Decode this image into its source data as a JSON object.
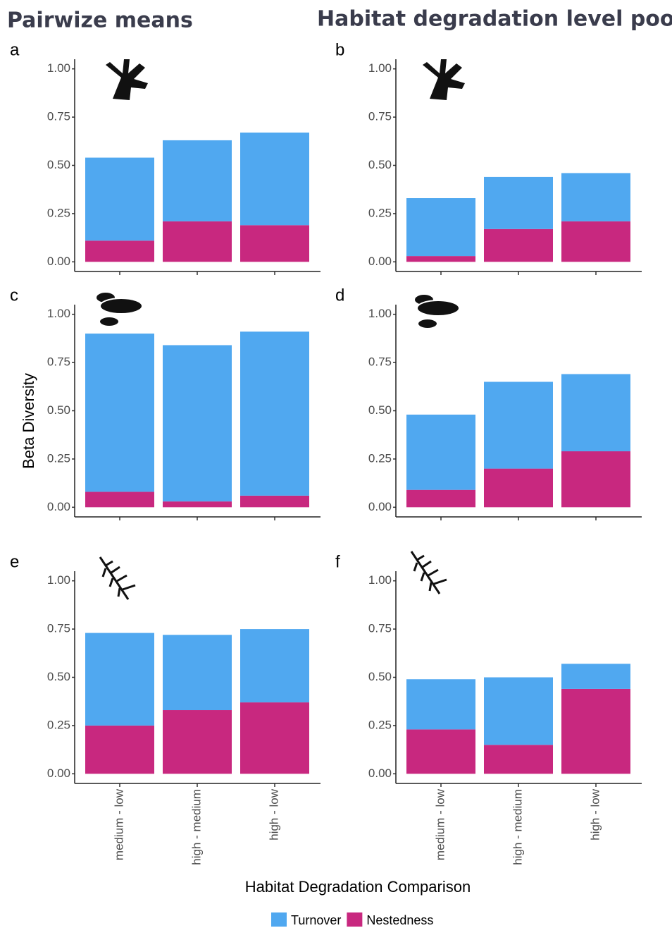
{
  "column_titles": [
    "Pairwize means",
    "Habitat degradation level pooled"
  ],
  "ylabel": "Beta Diversity",
  "xlabel": "Habitat Degradation Comparison",
  "legend": [
    {
      "name": "Turnover",
      "color": "#50a8f0"
    },
    {
      "name": "Nestedness",
      "color": "#c8287f"
    }
  ],
  "chart_data": [
    {
      "type": "bar",
      "stacked": true,
      "panel_label": "a",
      "categories": [
        null,
        null,
        null
      ],
      "series": [
        {
          "values": [
            0.43,
            0.42,
            0.48
          ]
        },
        {
          "values": [
            0.11,
            0.21,
            0.19
          ]
        }
      ],
      "ylim": [
        -0.05,
        1.05
      ],
      "yticks": [
        {
          "value": 0,
          "label": "0.00"
        },
        {
          "value": 0.25,
          "label": "0.25"
        },
        {
          "value": 0.5,
          "label": "0.50"
        },
        {
          "value": 0.75,
          "label": "0.75"
        },
        {
          "value": 1,
          "label": "1.00"
        }
      ]
    },
    {
      "type": "bar",
      "stacked": true,
      "panel_label": "b",
      "categories": [
        null,
        null,
        null
      ],
      "series": [
        {
          "values": [
            0.3,
            0.27,
            0.25
          ]
        },
        {
          "values": [
            0.03,
            0.17,
            0.21
          ]
        }
      ],
      "ylim": [
        -0.05,
        1.05
      ],
      "yticks": [
        {
          "value": 0,
          "label": "0.00"
        },
        {
          "value": 0.25,
          "label": "0.25"
        },
        {
          "value": 0.5,
          "label": "0.50"
        },
        {
          "value": 0.75,
          "label": "0.75"
        },
        {
          "value": 1,
          "label": "1.00"
        }
      ]
    },
    {
      "type": "bar",
      "stacked": true,
      "panel_label": "c",
      "categories": [
        null,
        null,
        null
      ],
      "series": [
        {
          "values": [
            0.82,
            0.81,
            0.85
          ]
        },
        {
          "values": [
            0.08,
            0.03,
            0.06
          ]
        }
      ],
      "ylim": [
        -0.05,
        1.05
      ],
      "yticks": [
        {
          "value": 0,
          "label": "0.00"
        },
        {
          "value": 0.25,
          "label": "0.25"
        },
        {
          "value": 0.5,
          "label": "0.50"
        },
        {
          "value": 0.75,
          "label": "0.75"
        },
        {
          "value": 1,
          "label": "1.00"
        }
      ]
    },
    {
      "type": "bar",
      "stacked": true,
      "panel_label": "d",
      "categories": [
        null,
        null,
        null
      ],
      "series": [
        {
          "values": [
            0.39,
            0.45,
            0.4
          ]
        },
        {
          "values": [
            0.09,
            0.2,
            0.29
          ]
        }
      ],
      "ylim": [
        -0.05,
        1.05
      ],
      "yticks": [
        {
          "value": 0,
          "label": "0.00"
        },
        {
          "value": 0.25,
          "label": "0.25"
        },
        {
          "value": 0.5,
          "label": "0.50"
        },
        {
          "value": 0.75,
          "label": "0.75"
        },
        {
          "value": 1,
          "label": "1.00"
        }
      ]
    },
    {
      "type": "bar",
      "stacked": true,
      "panel_label": "e",
      "categories": [
        "medium - low",
        "high - medium",
        "high - low"
      ],
      "series": [
        {
          "values": [
            0.48,
            0.39,
            0.38
          ]
        },
        {
          "values": [
            0.25,
            0.33,
            0.37
          ]
        }
      ],
      "ylim": [
        -0.05,
        1.05
      ],
      "yticks": [
        {
          "value": 0,
          "label": "0.00"
        },
        {
          "value": 0.25,
          "label": "0.25"
        },
        {
          "value": 0.5,
          "label": "0.50"
        },
        {
          "value": 0.75,
          "label": "0.75"
        },
        {
          "value": 1,
          "label": "1.00"
        }
      ]
    },
    {
      "type": "bar",
      "stacked": true,
      "panel_label": "f",
      "categories": [
        "medium - low",
        "high - medium",
        "high - low"
      ],
      "series": [
        {
          "values": [
            0.26,
            0.35,
            0.13
          ]
        },
        {
          "values": [
            0.23,
            0.15,
            0.44
          ]
        }
      ],
      "ylim": [
        -0.05,
        1.05
      ],
      "yticks": [
        {
          "value": 0,
          "label": "0.00"
        },
        {
          "value": 0.25,
          "label": "0.25"
        },
        {
          "value": 0.5,
          "label": "0.50"
        },
        {
          "value": 0.75,
          "label": "0.75"
        },
        {
          "value": 1,
          "label": "1.00"
        }
      ]
    }
  ]
}
